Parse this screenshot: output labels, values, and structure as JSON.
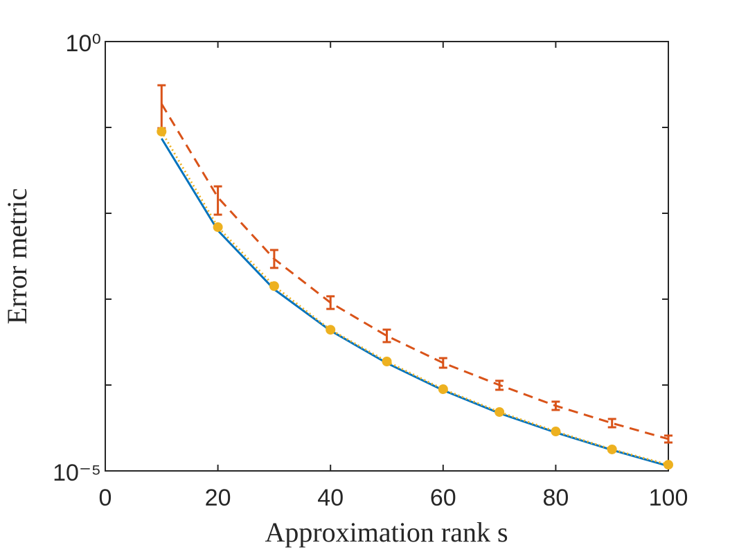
{
  "chart_data": {
    "type": "line",
    "xlabel": "Approximation rank s",
    "ylabel": "Error metric",
    "log_y": true,
    "xlim": [
      0,
      100
    ],
    "xticks": [
      0,
      20,
      40,
      60,
      80,
      100
    ],
    "ylim": [
      1e-05,
      1
    ],
    "yticks": [
      {
        "value": 1e-05,
        "label": "10⁻⁵"
      },
      {
        "value": 0.0001,
        "label": null
      },
      {
        "value": 0.001,
        "label": null
      },
      {
        "value": 0.01,
        "label": null
      },
      {
        "value": 0.1,
        "label": null
      },
      {
        "value": 1,
        "label": "10⁰"
      }
    ],
    "x": [
      10,
      20,
      30,
      40,
      50,
      60,
      70,
      80,
      90,
      100
    ],
    "series": [
      {
        "color": "#0072bd",
        "style": "solid",
        "values": [
          0.0743,
          0.0063,
          0.0013,
          0.00043,
          0.00018,
          8.7e-05,
          4.7e-05,
          2.8e-05,
          1.75e-05,
          1.14e-05
        ]
      },
      {
        "color": "#d95319",
        "style": "dashed",
        "values": [
          0.188,
          0.0153,
          0.00294,
          0.00091,
          0.000374,
          0.000181,
          0.0001,
          5.73e-05,
          3.6e-05,
          2.35e-05
        ],
        "lower": [
          0.098,
          0.00964,
          0.00231,
          0.00077,
          0.000316,
          0.000159,
          8.8e-05,
          5.13e-05,
          3.22e-05,
          2.14e-05
        ],
        "upper": [
          0.31,
          0.0206,
          0.00374,
          0.00108,
          0.000442,
          0.000206,
          0.000112,
          6.4e-05,
          4.03e-05,
          2.58e-05
        ]
      },
      {
        "color": "#edb120",
        "style": "dotted",
        "marker": "circle",
        "values": [
          0.0895,
          0.0069,
          0.00142,
          0.00044,
          0.000188,
          8.95e-05,
          4.85e-05,
          2.88e-05,
          1.78e-05,
          1.18e-05
        ]
      }
    ]
  }
}
